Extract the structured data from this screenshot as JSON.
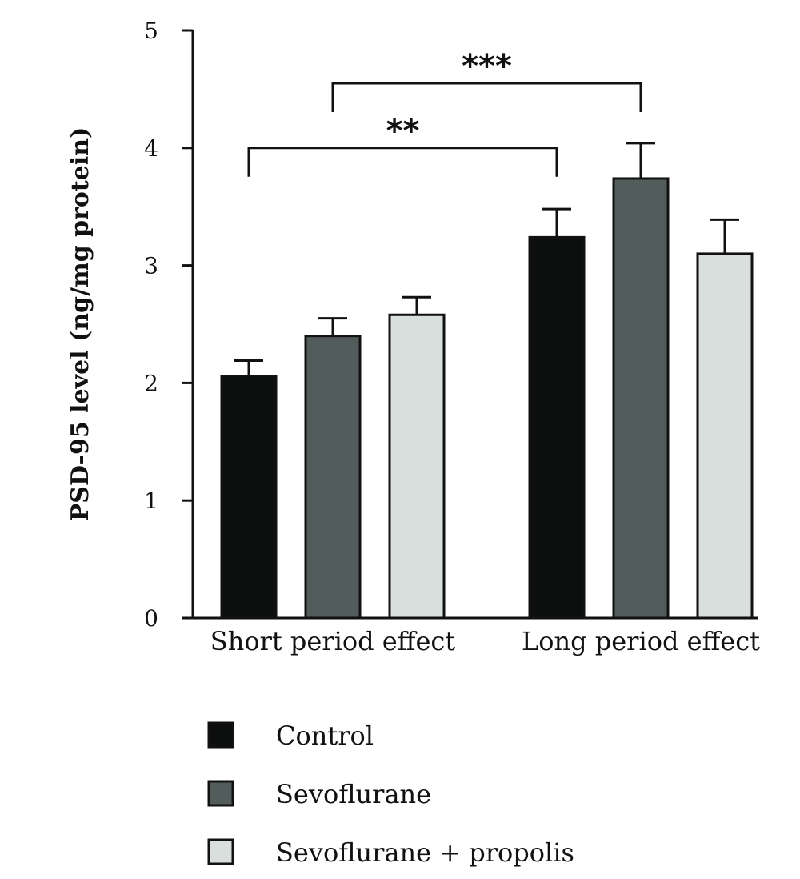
{
  "chart_data": {
    "type": "bar",
    "title": "",
    "xlabel": "",
    "ylabel": "PSD-95 level (ng/mg protein)",
    "ylim": [
      0,
      5
    ],
    "yticks": [
      "0",
      "1",
      "2",
      "3",
      "4",
      "5"
    ],
    "grid": false,
    "legend_position": "bottom-left",
    "categories": [
      "Short period effect",
      "Long period effect"
    ],
    "series": [
      {
        "name": "Control",
        "values": [
          2.06,
          3.24
        ],
        "errors": [
          0.13,
          0.24
        ],
        "color": "#0d0f0e"
      },
      {
        "name": "Sevoflurane",
        "values": [
          2.4,
          3.74
        ],
        "errors": [
          0.15,
          0.3
        ],
        "color": "#525c5b"
      },
      {
        "name": "Sevoflurane + propolis",
        "values": [
          2.58,
          3.1
        ],
        "errors": [
          0.15,
          0.29
        ],
        "color": "#d8dfdc"
      }
    ],
    "annotations": [
      {
        "label": "**",
        "from": {
          "category": 0,
          "series": 0
        },
        "to": {
          "category": 1,
          "series": 0
        },
        "level": 4.0
      },
      {
        "label": "***",
        "from": {
          "category": 0,
          "series": 1
        },
        "to": {
          "category": 1,
          "series": 1
        },
        "level": 4.55
      }
    ]
  }
}
